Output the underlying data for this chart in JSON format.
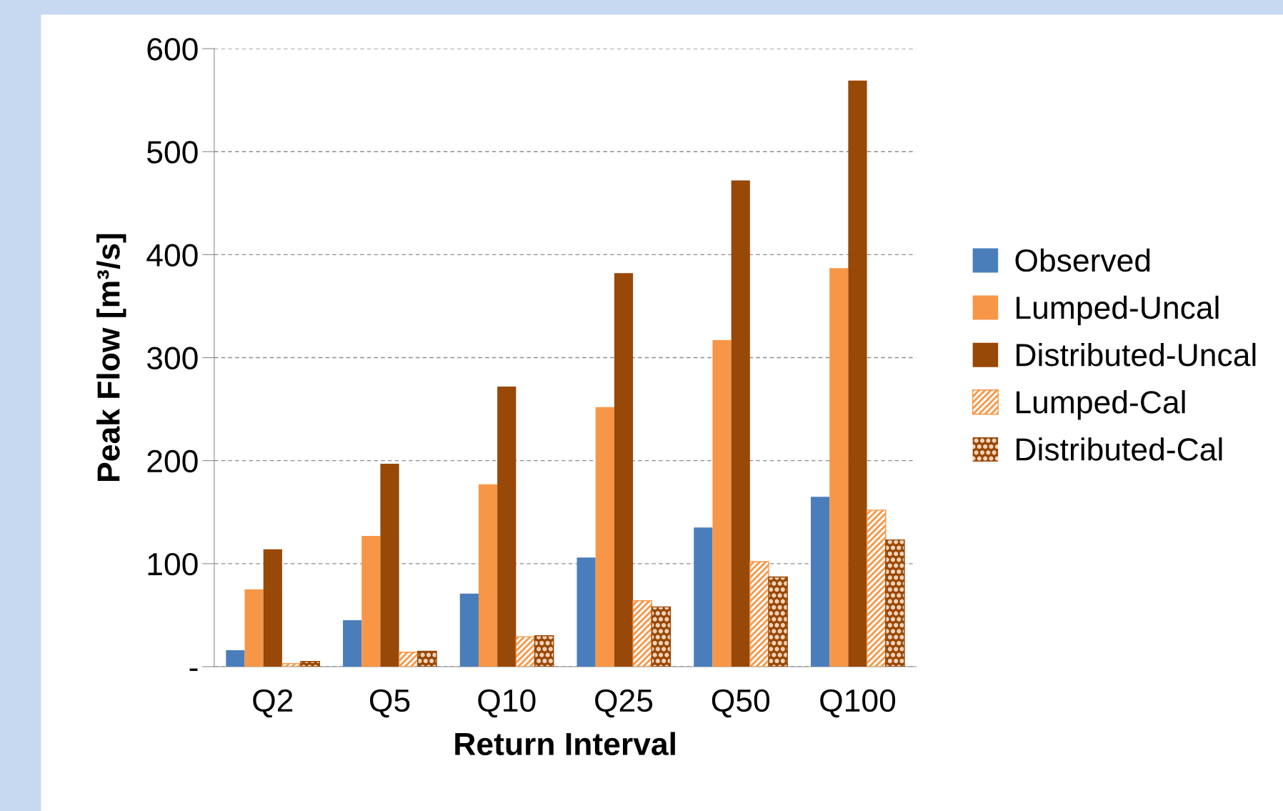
{
  "chart_data": {
    "type": "bar",
    "xlabel": "Return Interval",
    "ylabel": "Peak Flow [m³/s]",
    "categories": [
      "Q2",
      "Q5",
      "Q10",
      "Q25",
      "Q50",
      "Q100"
    ],
    "series": [
      {
        "name": "Observed",
        "color": "#4a7ebb",
        "values": [
          16,
          45,
          71,
          106,
          135,
          165
        ]
      },
      {
        "name": "Lumped-Uncal",
        "color": "#f79646",
        "values": [
          75,
          127,
          177,
          252,
          317,
          387
        ]
      },
      {
        "name": "Distributed-Uncal",
        "color": "#984807",
        "values": [
          114,
          197,
          272,
          382,
          472,
          569
        ]
      },
      {
        "name": "Lumped-Cal",
        "color": "#f79646",
        "values": [
          3,
          14,
          29,
          64,
          102,
          152
        ]
      },
      {
        "name": "Distributed-Cal",
        "color": "#984807",
        "values": [
          5,
          15,
          30,
          58,
          87,
          123
        ]
      }
    ],
    "ylim": [
      0,
      600
    ],
    "yticks": [
      {
        "value": 0,
        "label": "-"
      },
      100,
      200,
      300,
      400,
      500,
      600
    ],
    "grid": "y",
    "legend": "right"
  }
}
